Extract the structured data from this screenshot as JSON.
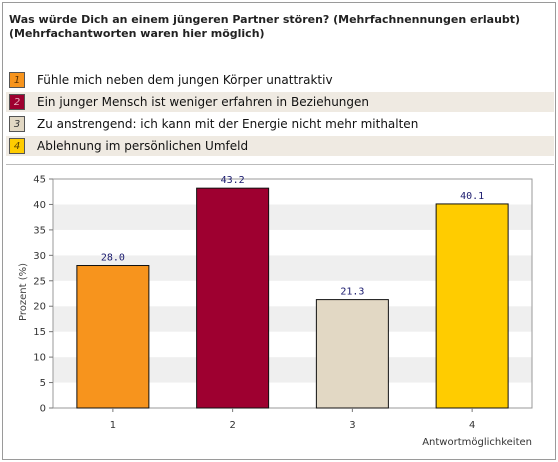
{
  "title_lines": [
    "Was würde Dich an einem jüngeren Partner stören? (Mehrfachnennungen erlaubt)",
    "(Mehrfachantworten waren hier möglich)"
  ],
  "legend": [
    {
      "number": "1",
      "label": "Fühle mich neben dem jungen Körper unattraktiv",
      "color": "#f7941d",
      "number_color": "#5a3000"
    },
    {
      "number": "2",
      "label": "Ein junger Mensch ist weniger erfahren in Beziehungen",
      "color": "#9e0030",
      "number_color": "#e8b0c0"
    },
    {
      "number": "3",
      "label": "Zu anstrengend: ich kann mit der Energie nicht mehr mithalten",
      "color": "#e2d8c4",
      "number_color": "#333333"
    },
    {
      "number": "4",
      "label": "Ablehnung im persönlichen Umfeld",
      "color": "#ffcc00",
      "number_color": "#5a4000"
    }
  ],
  "chart_data": {
    "type": "bar",
    "categories": [
      "1",
      "2",
      "3",
      "4"
    ],
    "values": [
      28.0,
      43.2,
      21.3,
      40.1
    ],
    "value_labels": [
      "28.0",
      "43.2",
      "21.3",
      "40.1"
    ],
    "colors": [
      "#f7941d",
      "#9e0030",
      "#e2d8c4",
      "#ffcc00"
    ],
    "xlabel": "Antwortmöglichkeiten",
    "ylabel": "Prozent (%)",
    "ylim": [
      0,
      45
    ],
    "yticks": [
      0,
      5,
      10,
      15,
      20,
      25,
      30,
      35,
      40,
      45
    ],
    "grid": "horizontal alternating bands"
  }
}
